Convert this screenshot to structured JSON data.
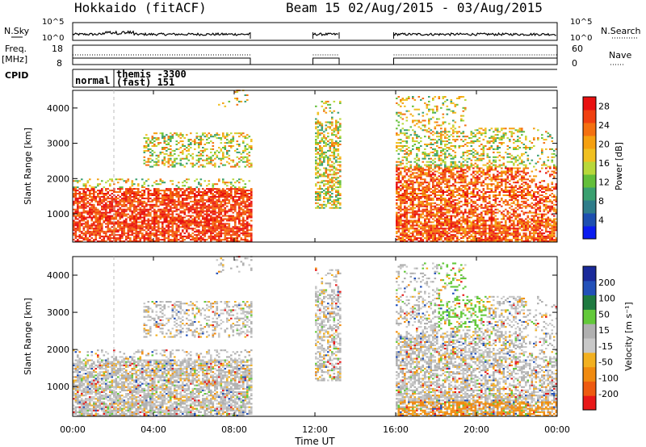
{
  "header": {
    "station": "Hokkaido (fitACF)",
    "beam_dates": "Beam 15  02/Aug/2015 - 03/Aug/2015"
  },
  "top_panels": {
    "nsky_label": "N.Sky",
    "nsky_ticks": [
      "10^5",
      "10^0"
    ],
    "nsearch_label": "N.Search",
    "nsearch_ticks": [
      "10^5",
      "10^0"
    ],
    "freq_label": "Freq.",
    "freq_unit": "[MHz]",
    "freq_ticks": [
      "18",
      "8"
    ],
    "nave_label": "Nave",
    "nave_ticks": [
      "60",
      "0"
    ],
    "cpid_label": "CPID",
    "cpid_entries": [
      "normal",
      "themis -3300",
      "(fast) 151"
    ]
  },
  "colors": {
    "power_scale": [
      "#0a1cf0",
      "#1d4fb0",
      "#2f7d8a",
      "#3aa070",
      "#63bf3a",
      "#b8d83a",
      "#f0c020",
      "#f5a010",
      "#f47010",
      "#f04010",
      "#e81010"
    ],
    "velocity_scale": [
      "#1a2a9a",
      "#2250b8",
      "#1f7a40",
      "#63c93a",
      "#b0b0b0",
      "#c8c8c8",
      "#f2b020",
      "#f08a10",
      "#ee5a10",
      "#e81818"
    ]
  },
  "chart_data": [
    {
      "type": "heatmap",
      "name": "power",
      "ylabel": "Slant Range [km]",
      "yticks": [
        1000,
        2000,
        3000,
        4000
      ],
      "ylim": [
        200,
        4500
      ],
      "x_ticks": [
        "00:00",
        "04:00",
        "08:00",
        "12:00",
        "16:00",
        "20:00",
        "00:00"
      ],
      "xlim_hours": [
        0,
        24
      ],
      "colorbar_label": "Power [dB]",
      "colorbar_ticks": [
        4,
        8,
        12,
        16,
        20,
        24,
        28
      ],
      "colorbar_range": [
        0,
        30
      ],
      "data_intervals_hours": [
        [
          0,
          8.8
        ],
        [
          11.9,
          13.2
        ],
        [
          15.9,
          24
        ]
      ]
    },
    {
      "type": "heatmap",
      "name": "velocity",
      "ylabel": "Slant Range [km]",
      "yticks": [
        1000,
        2000,
        3000,
        4000
      ],
      "ylim": [
        200,
        4500
      ],
      "x_ticks": [
        "00:00",
        "04:00",
        "08:00",
        "12:00",
        "16:00",
        "20:00",
        "00:00"
      ],
      "xlim_hours": [
        0,
        24
      ],
      "xlabel": "Time UT",
      "colorbar_label": "Velocity [m s⁻¹]",
      "colorbar_ticks": [
        200,
        100,
        50,
        15,
        -15,
        -50,
        -100,
        -200
      ],
      "data_intervals_hours": [
        [
          0,
          8.8
        ],
        [
          11.9,
          13.2
        ],
        [
          15.9,
          24
        ]
      ]
    }
  ]
}
